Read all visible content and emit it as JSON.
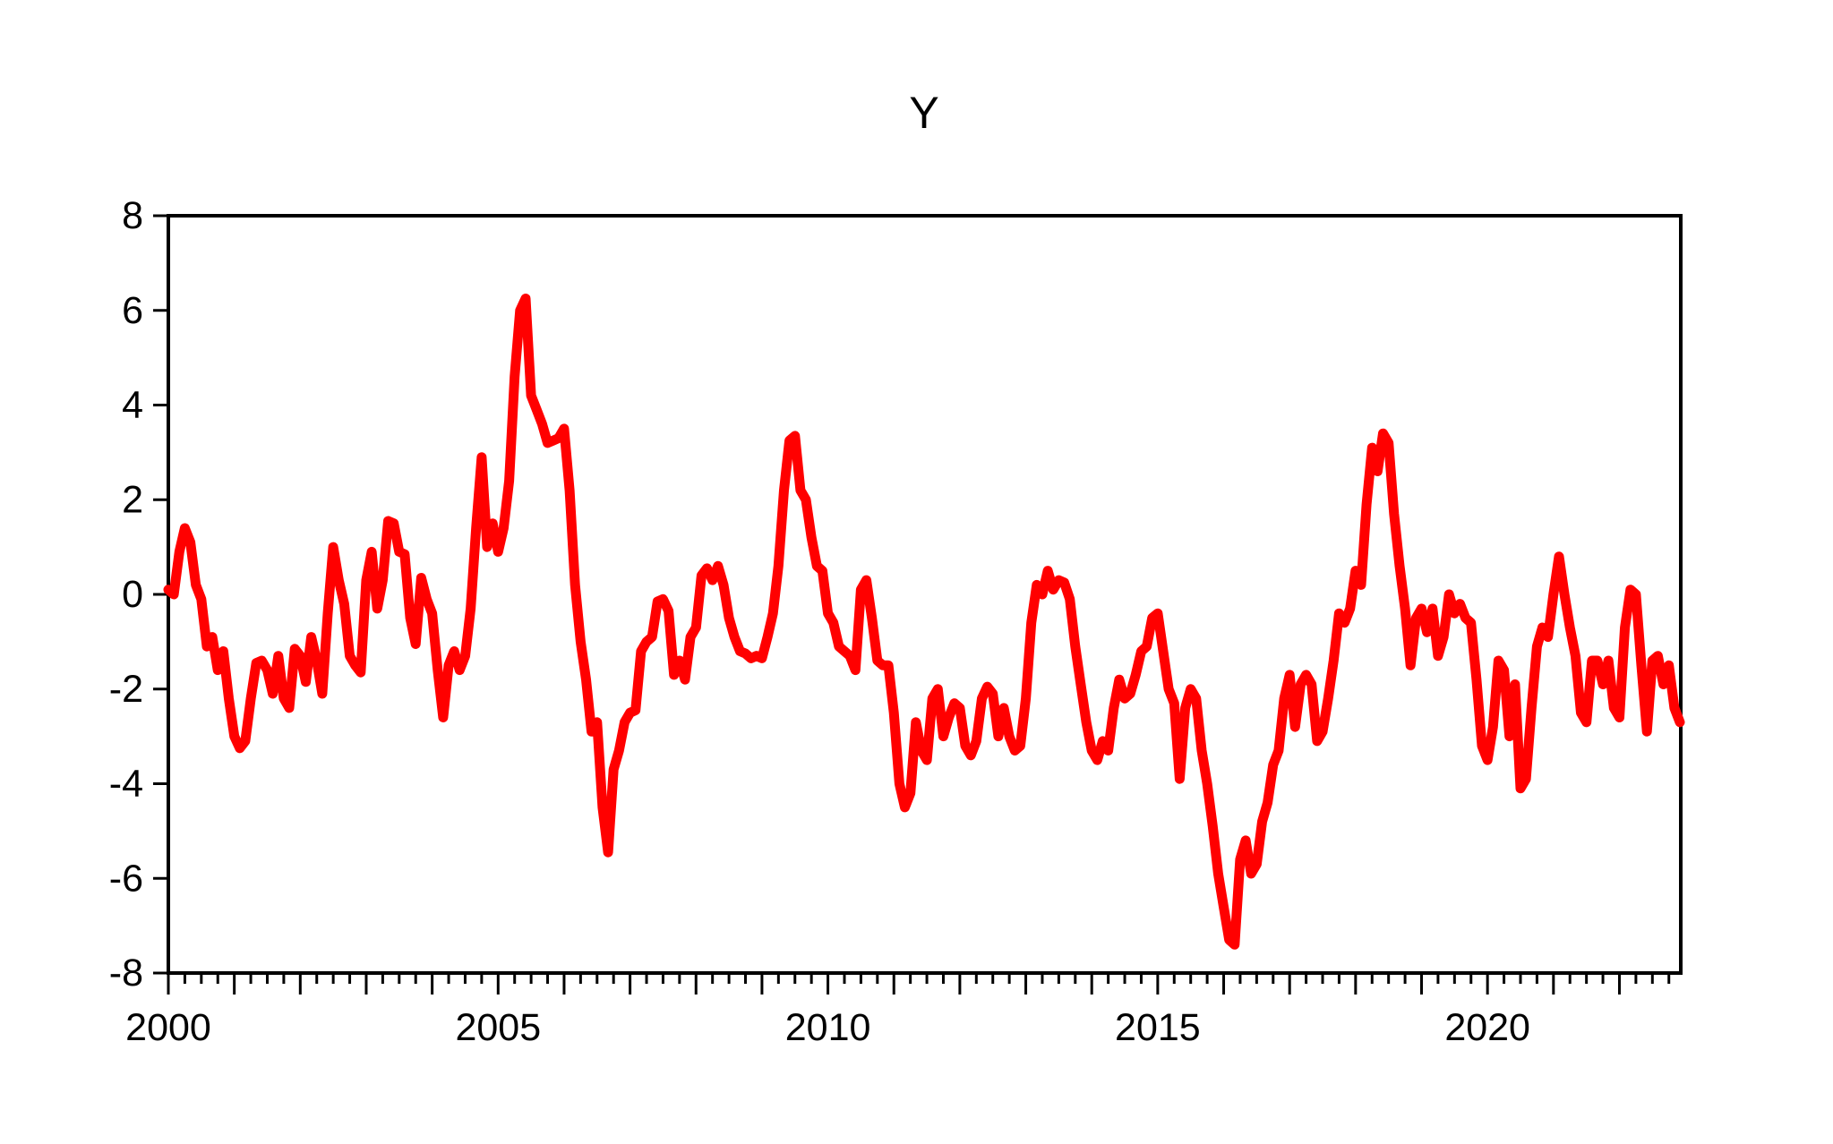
{
  "page": {
    "background": "#ffffff"
  },
  "chart_data": {
    "type": "line",
    "title": "Y",
    "series_name": "Y",
    "frequency": "monthly",
    "start_period": "2000M01",
    "end_period": "2022M12",
    "x_start_year": 2000,
    "months_count": 276,
    "values": [
      0.1,
      0.0,
      0.9,
      1.4,
      1.1,
      0.2,
      -0.1,
      -1.1,
      -0.9,
      -1.6,
      -1.2,
      -2.2,
      -3.0,
      -3.25,
      -3.1,
      -2.2,
      -1.45,
      -1.4,
      -1.6,
      -2.1,
      -1.3,
      -2.2,
      -2.4,
      -1.15,
      -1.3,
      -1.85,
      -0.9,
      -1.4,
      -2.1,
      -0.4,
      1.0,
      0.3,
      -0.2,
      -1.3,
      -1.5,
      -1.65,
      0.3,
      0.9,
      -0.3,
      0.3,
      1.55,
      1.5,
      0.9,
      0.85,
      -0.5,
      -1.05,
      0.35,
      -0.1,
      -0.4,
      -1.6,
      -2.6,
      -1.5,
      -1.2,
      -1.6,
      -1.3,
      -0.3,
      1.4,
      2.9,
      1.0,
      1.5,
      0.9,
      1.4,
      2.4,
      4.6,
      6.0,
      6.25,
      4.2,
      3.9,
      3.6,
      3.2,
      3.25,
      3.3,
      3.5,
      2.2,
      0.2,
      -1.0,
      -1.8,
      -2.9,
      -2.7,
      -4.5,
      -5.45,
      -3.7,
      -3.3,
      -2.7,
      -2.5,
      -2.45,
      -1.2,
      -1.0,
      -0.9,
      -0.15,
      -0.1,
      -0.35,
      -1.7,
      -1.4,
      -1.8,
      -0.9,
      -0.7,
      0.4,
      0.55,
      0.3,
      0.6,
      0.2,
      -0.5,
      -0.9,
      -1.2,
      -1.25,
      -1.35,
      -1.3,
      -1.35,
      -0.9,
      -0.4,
      0.6,
      2.2,
      3.25,
      3.35,
      2.2,
      2.0,
      1.2,
      0.6,
      0.5,
      -0.4,
      -0.6,
      -1.1,
      -1.2,
      -1.3,
      -1.6,
      0.1,
      0.3,
      -0.5,
      -1.4,
      -1.5,
      -1.5,
      -2.5,
      -4.0,
      -4.5,
      -4.2,
      -2.7,
      -3.3,
      -3.5,
      -2.2,
      -2.0,
      -3.0,
      -2.6,
      -2.3,
      -2.4,
      -3.2,
      -3.4,
      -3.1,
      -2.2,
      -1.95,
      -2.1,
      -3.0,
      -2.4,
      -3.0,
      -3.3,
      -3.2,
      -2.2,
      -0.6,
      0.2,
      0.0,
      0.5,
      0.1,
      0.3,
      0.25,
      -0.1,
      -1.1,
      -1.9,
      -2.7,
      -3.3,
      -3.5,
      -3.1,
      -3.3,
      -2.4,
      -1.8,
      -2.2,
      -2.1,
      -1.7,
      -1.2,
      -1.1,
      -0.5,
      -0.4,
      -1.2,
      -2.0,
      -2.3,
      -3.9,
      -2.4,
      -2.0,
      -2.2,
      -3.3,
      -4.0,
      -4.9,
      -5.9,
      -6.6,
      -7.3,
      -7.4,
      -5.6,
      -5.2,
      -5.9,
      -5.7,
      -4.8,
      -4.4,
      -3.6,
      -3.3,
      -2.2,
      -1.7,
      -2.8,
      -1.9,
      -1.7,
      -1.9,
      -3.1,
      -2.9,
      -2.2,
      -1.4,
      -0.4,
      -0.6,
      -0.3,
      0.5,
      0.2,
      1.9,
      3.1,
      2.6,
      3.4,
      3.2,
      1.7,
      0.6,
      -0.3,
      -1.5,
      -0.5,
      -0.3,
      -0.8,
      -0.3,
      -1.3,
      -0.9,
      0.0,
      -0.4,
      -0.2,
      -0.5,
      -0.6,
      -1.8,
      -3.2,
      -3.5,
      -2.8,
      -1.4,
      -1.6,
      -3.0,
      -1.9,
      -4.1,
      -3.9,
      -2.4,
      -1.1,
      -0.7,
      -0.9,
      0.0,
      0.8,
      0.0,
      -0.7,
      -1.3,
      -2.5,
      -2.7,
      -1.4,
      -1.4,
      -1.9,
      -1.4,
      -2.4,
      -2.6,
      -0.7,
      0.1,
      0.0,
      -1.5,
      -2.9,
      -1.4,
      -1.3,
      -1.9,
      -1.5,
      -2.4,
      -2.7
    ],
    "ylim": [
      -8,
      8
    ],
    "y_ticks": [
      8,
      6,
      4,
      2,
      0,
      -2,
      -4,
      -6,
      -8
    ],
    "y_tick_labels": [
      "8",
      "6",
      "4",
      "2",
      "0",
      "-2",
      "-4",
      "-6",
      "-8"
    ],
    "x_labeled_years": [
      2000,
      2005,
      2010,
      2015,
      2020
    ],
    "x_major_tick": "yearly",
    "x_minor_tick": "quarterly",
    "grid": false,
    "legend": false,
    "line_color": "#ff0000",
    "axis_color": "#000000",
    "plot_background": "#ffffff"
  }
}
